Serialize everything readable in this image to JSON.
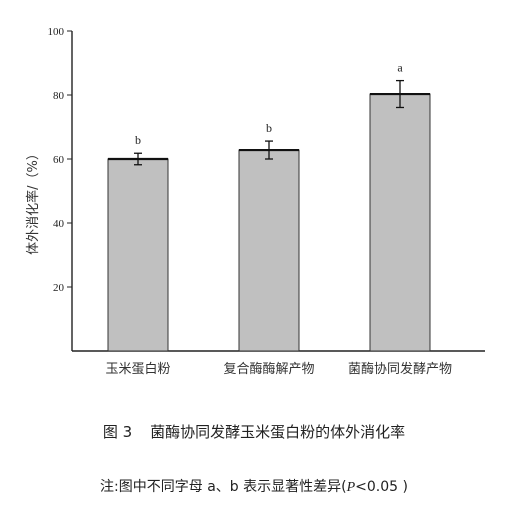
{
  "chart_data": {
    "type": "bar",
    "categories": [
      "玉米蛋白粉",
      "复合酶酶解产物",
      "菌酶协同发酵产物"
    ],
    "values": [
      60,
      62.8,
      80.3
    ],
    "errors": [
      1.8,
      2.8,
      4.2
    ],
    "significance": [
      "b",
      "b",
      "a"
    ],
    "ylabel": "体外消化率/（%）",
    "ylim": [
      0,
      100
    ],
    "yticks": [
      20,
      40,
      60,
      80,
      100
    ],
    "grid": false,
    "bar_color": "#c0c0c0"
  },
  "caption": {
    "figure_number": "图 3",
    "title": "菌酶协同发酵玉米蛋白粉的体外消化率",
    "note_prefix": "注:图中不同字母 a、b 表示显著性差异(",
    "note_p": "P",
    "note_suffix": "<0.05 )"
  }
}
